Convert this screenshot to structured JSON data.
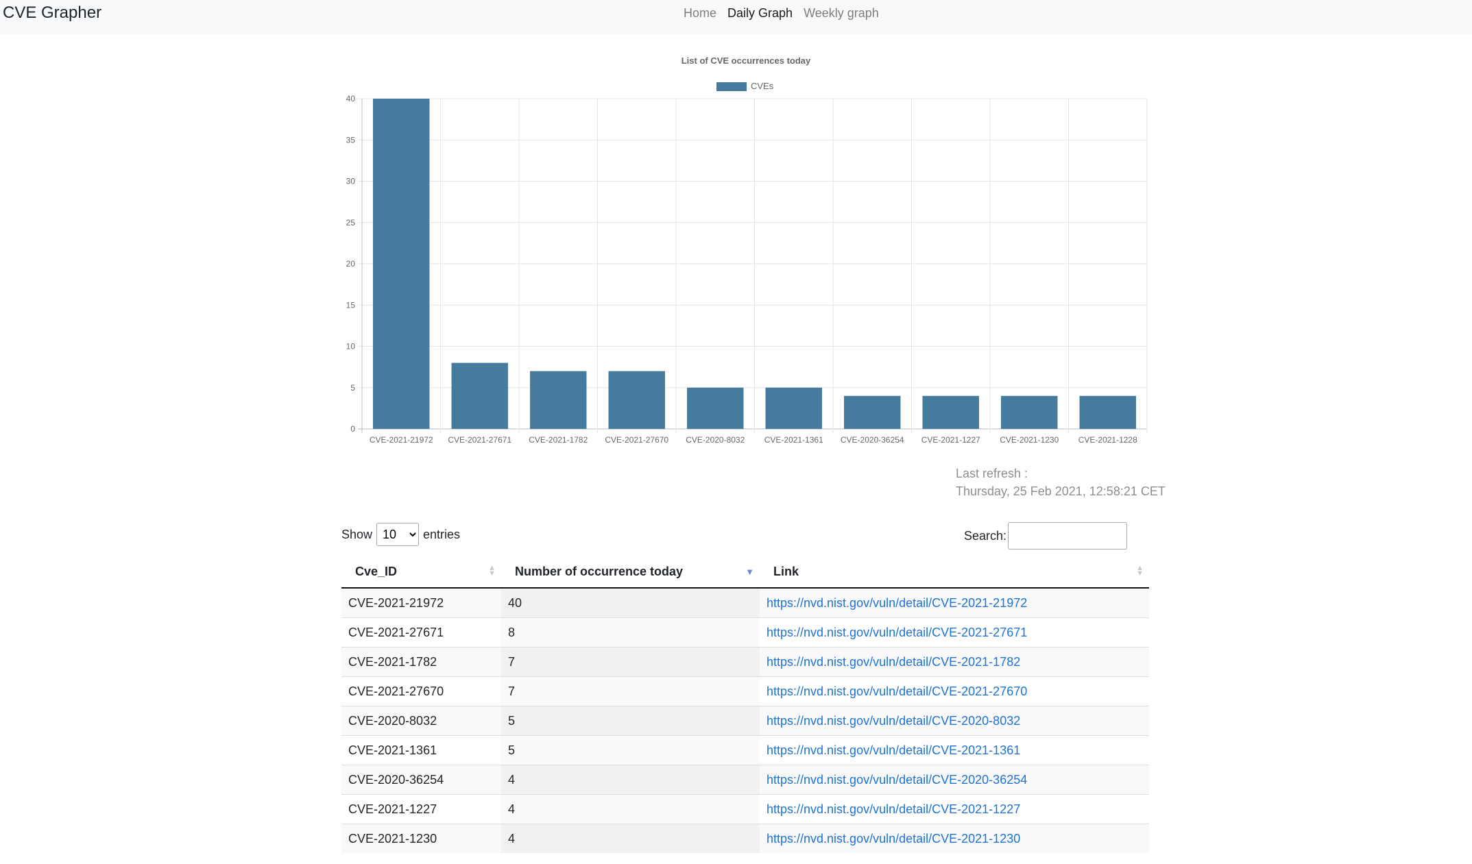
{
  "navbar": {
    "brand": "CVE Grapher",
    "links": [
      {
        "label": "Home",
        "active": false
      },
      {
        "label": "Daily Graph",
        "active": true
      },
      {
        "label": "Weekly graph",
        "active": false
      }
    ]
  },
  "chart_data": {
    "type": "bar",
    "title": "List of CVE occurrences today",
    "categories": [
      "CVE-2021-21972",
      "CVE-2021-27671",
      "CVE-2021-1782",
      "CVE-2021-27670",
      "CVE-2020-8032",
      "CVE-2021-1361",
      "CVE-2020-36254",
      "CVE-2021-1227",
      "CVE-2021-1230",
      "CVE-2021-1228"
    ],
    "series": [
      {
        "name": "CVEs",
        "values": [
          40,
          8,
          7,
          7,
          5,
          5,
          4,
          4,
          4,
          4
        ]
      }
    ],
    "ylim": [
      0,
      40
    ],
    "yticks": [
      0,
      5,
      10,
      15,
      20,
      25,
      30,
      35,
      40
    ],
    "grid": true,
    "legend": "top-center",
    "bar_color": "#457b9d"
  },
  "refresh": {
    "label": "Last refresh :",
    "value": "Thursday, 25 Feb 2021, 12:58:21 CET"
  },
  "table_controls": {
    "show_label": "Show",
    "entries_value": "10",
    "entries_label": "entries",
    "search_label": "Search:"
  },
  "table": {
    "columns": [
      "Cve_ID",
      "Number of occurrence today",
      "Link"
    ],
    "rows": [
      [
        "CVE-2021-21972",
        "40",
        "https://nvd.nist.gov/vuln/detail/CVE-2021-21972"
      ],
      [
        "CVE-2021-27671",
        "8",
        "https://nvd.nist.gov/vuln/detail/CVE-2021-27671"
      ],
      [
        "CVE-2021-1782",
        "7",
        "https://nvd.nist.gov/vuln/detail/CVE-2021-1782"
      ],
      [
        "CVE-2021-27670",
        "7",
        "https://nvd.nist.gov/vuln/detail/CVE-2021-27670"
      ],
      [
        "CVE-2020-8032",
        "5",
        "https://nvd.nist.gov/vuln/detail/CVE-2020-8032"
      ],
      [
        "CVE-2021-1361",
        "5",
        "https://nvd.nist.gov/vuln/detail/CVE-2021-1361"
      ],
      [
        "CVE-2020-36254",
        "4",
        "https://nvd.nist.gov/vuln/detail/CVE-2020-36254"
      ],
      [
        "CVE-2021-1227",
        "4",
        "https://nvd.nist.gov/vuln/detail/CVE-2021-1227"
      ],
      [
        "CVE-2021-1230",
        "4",
        "https://nvd.nist.gov/vuln/detail/CVE-2021-1230"
      ]
    ]
  }
}
